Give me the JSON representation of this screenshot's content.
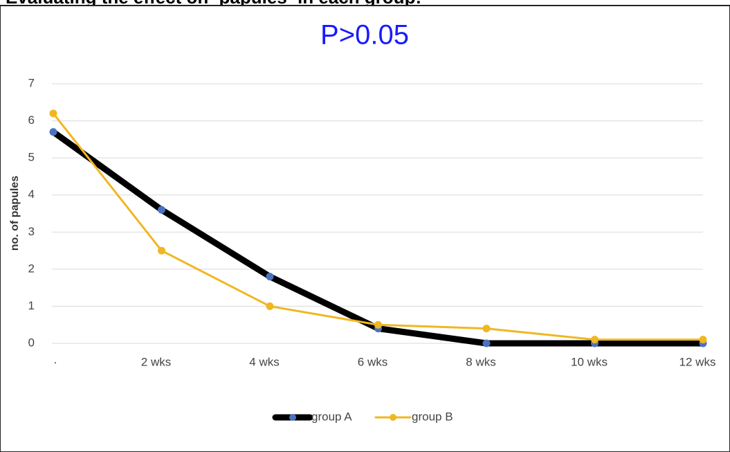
{
  "header": {
    "before": "Evaluating the effect on",
    "highlight": "papules",
    "after": "in each group:"
  },
  "chart_data": {
    "type": "line",
    "annotation": "P>0.05",
    "y_label": "no. of papules",
    "categories": [
      "·",
      "2 wks",
      "4 wks",
      "6 wks",
      "8 wks",
      "10 wks",
      "12 wks"
    ],
    "series": [
      {
        "name": "group A",
        "color": "#000000",
        "marker_color": "#4a72c0",
        "values": [
          5.7,
          3.6,
          1.8,
          0.4,
          0,
          0,
          0
        ]
      },
      {
        "name": "group B",
        "color": "#f0b722",
        "marker_color": "#f0b722",
        "values": [
          6.2,
          2.5,
          1.0,
          0.5,
          0.4,
          0.1,
          0.1
        ]
      }
    ],
    "ylim": [
      0,
      7
    ],
    "yticks": [
      0,
      1,
      2,
      3,
      4,
      5,
      6,
      7
    ],
    "grid": true,
    "legend": "bottom"
  }
}
